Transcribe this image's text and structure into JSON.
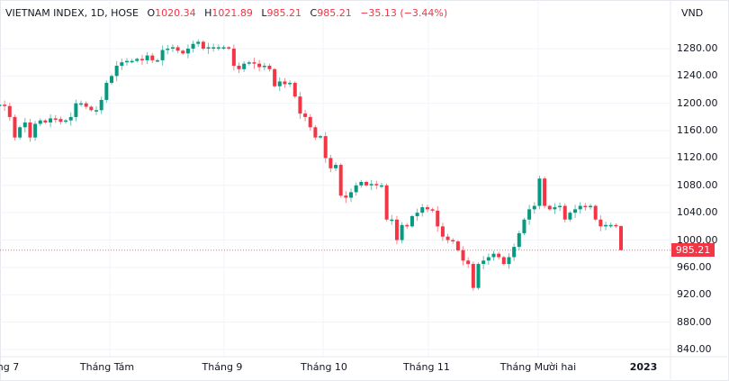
{
  "header": {
    "symbol": "VIETNAM INDEX, 1D, HOSE",
    "open_label": "O",
    "open": "1020.34",
    "high_label": "H",
    "high": "1021.89",
    "low_label": "L",
    "low": "985.21",
    "close_label": "C",
    "close": "985.21",
    "change": "−35.13 (−3.44%)"
  },
  "colors": {
    "up": "#089981",
    "down": "#f23645",
    "grid": "#f0f3fa",
    "text": "#131722"
  },
  "chart_data": {
    "type": "candlestick",
    "currency": "VND",
    "ylim": [
      820,
      1310
    ],
    "y_ticks": [
      "1280.00",
      "1240.00",
      "1200.00",
      "1160.00",
      "1120.00",
      "1080.00",
      "1040.00",
      "1000.00",
      "960.00",
      "920.00",
      "880.00",
      "840.00"
    ],
    "x_ticks": [
      "ng 7",
      "Tháng Tám",
      "Tháng 9",
      "Tháng 10",
      "Tháng 11",
      "Tháng Mười hai",
      "2023"
    ],
    "last_price": "985.21",
    "last_candle": {
      "open": 1020.34,
      "high": 1021.89,
      "low": 985.21,
      "close": 985.21
    },
    "closes": [
      1198,
      1196,
      1180,
      1150,
      1165,
      1172,
      1150,
      1170,
      1175,
      1172,
      1178,
      1177,
      1173,
      1175,
      1180,
      1200,
      1200,
      1195,
      1190,
      1190,
      1205,
      1230,
      1240,
      1255,
      1260,
      1262,
      1262,
      1265,
      1263,
      1270,
      1263,
      1263,
      1278,
      1280,
      1282,
      1277,
      1273,
      1280,
      1287,
      1290,
      1280,
      1282,
      1282,
      1282,
      1282,
      1280,
      1255,
      1250,
      1258,
      1260,
      1258,
      1253,
      1255,
      1250,
      1225,
      1232,
      1228,
      1230,
      1210,
      1185,
      1180,
      1165,
      1150,
      1152,
      1120,
      1105,
      1110,
      1065,
      1062,
      1070,
      1080,
      1085,
      1080,
      1082,
      1080,
      1080,
      1030,
      1030,
      1000,
      1022,
      1020,
      1035,
      1040,
      1048,
      1045,
      1043,
      1020,
      1005,
      1000,
      998,
      985,
      970,
      965,
      930,
      965,
      970,
      975,
      980,
      975,
      965,
      975,
      990,
      1010,
      1030,
      1045,
      1050,
      1090,
      1050,
      1045,
      1048,
      1050,
      1030,
      1040,
      1045,
      1050,
      1048,
      1050,
      1030,
      1020,
      1022,
      1022,
      1020.34,
      985.21
    ]
  }
}
